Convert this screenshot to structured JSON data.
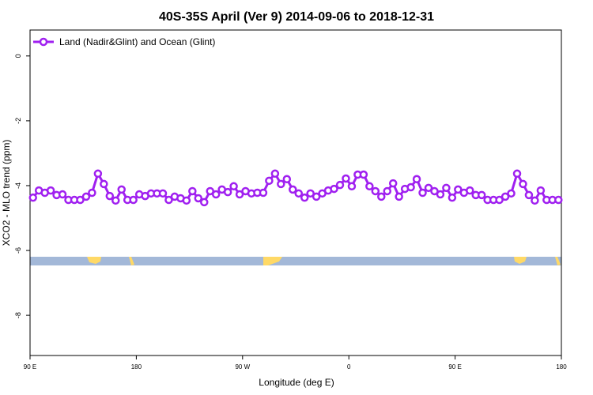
{
  "chart_data": {
    "type": "line",
    "title": "40S-35S April (Ver 9)   2014-09-06 to 2018-12-31",
    "xlabel": "Longitude (deg E)",
    "ylabel": "XCO2 - MLO trend (ppm)",
    "xlim": [
      90,
      540
    ],
    "ylim": [
      -9.24,
      0.8
    ],
    "xticks": [
      {
        "value": 90,
        "label": "90 E"
      },
      180,
      {
        "value": 270,
        "label": "90 W"
      },
      {
        "value": 360,
        "label": "0"
      },
      {
        "value": 450,
        "label": "90 E"
      },
      {
        "value": 540,
        "label": "180"
      }
    ],
    "yticks": [
      0,
      -2,
      -4,
      -6,
      -8
    ],
    "legend": "top-left",
    "x": [
      92.5,
      97.5,
      102.5,
      107.5,
      112.5,
      117.5,
      122.5,
      127.5,
      132.5,
      137.5,
      142.5,
      147.5,
      152.5,
      157.5,
      162.5,
      167.5,
      172.5,
      177.5,
      182.5,
      187.5,
      192.5,
      197.5,
      202.5,
      207.5,
      212.5,
      217.5,
      222.5,
      227.5,
      232.5,
      237.5,
      242.5,
      247.5,
      252.5,
      257.5,
      262.5,
      267.5,
      272.5,
      277.5,
      282.5,
      287.5,
      292.5,
      297.5,
      302.5,
      307.5,
      312.5,
      317.5,
      322.5,
      327.5,
      332.5,
      337.5,
      342.5,
      347.5,
      352.5,
      357.5,
      362.5,
      367.5,
      372.5,
      377.5,
      382.5,
      387.5,
      392.5,
      397.5,
      402.5,
      407.5,
      412.5,
      417.5,
      422.5,
      427.5,
      432.5,
      437.5,
      442.5,
      447.5,
      452.5,
      457.5,
      462.5,
      467.5,
      472.5,
      477.5,
      482.5,
      487.5,
      492.5,
      497.5,
      502.5,
      507.5,
      512.5,
      517.5,
      522.5,
      527.5,
      532.5,
      537.5
    ],
    "series": [
      {
        "name": "Land (Nadir&Glint) and Ocean (Glint)",
        "color": "#a020f0",
        "values": [
          -4.37,
          -4.15,
          -4.22,
          -4.15,
          -4.29,
          -4.27,
          -4.44,
          -4.44,
          -4.44,
          -4.34,
          -4.22,
          -3.63,
          -3.95,
          -4.32,
          -4.46,
          -4.12,
          -4.44,
          -4.44,
          -4.27,
          -4.32,
          -4.24,
          -4.24,
          -4.24,
          -4.44,
          -4.34,
          -4.39,
          -4.46,
          -4.17,
          -4.39,
          -4.51,
          -4.17,
          -4.27,
          -4.12,
          -4.2,
          -4.02,
          -4.27,
          -4.17,
          -4.24,
          -4.22,
          -4.22,
          -3.85,
          -3.63,
          -3.95,
          -3.8,
          -4.12,
          -4.24,
          -4.37,
          -4.24,
          -4.34,
          -4.24,
          -4.15,
          -4.1,
          -3.98,
          -3.78,
          -4.02,
          -3.66,
          -3.66,
          -4.02,
          -4.17,
          -4.34,
          -4.17,
          -3.93,
          -4.34,
          -4.1,
          -4.05,
          -3.8,
          -4.22,
          -4.07,
          -4.17,
          -4.27,
          -4.07,
          -4.37,
          -4.12,
          -4.22,
          -4.15,
          -4.29,
          -4.29,
          -4.44,
          -4.44,
          -4.44,
          -4.34,
          -4.24,
          -3.63,
          -3.95,
          -4.29,
          -4.46,
          -4.15,
          -4.44,
          -4.44,
          -4.44
        ]
      }
    ]
  }
}
